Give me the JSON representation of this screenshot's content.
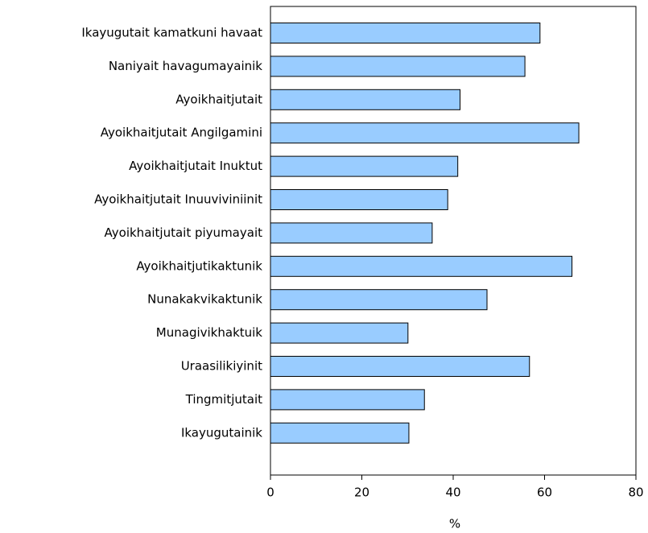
{
  "chart_data": {
    "type": "barh",
    "categories": [
      "Ikayugutait kamatkuni havaat",
      "Naniyait havagumayainik",
      "Ayoikhaitjutait",
      "Ayoikhaitjutait Angilgamini",
      "Ayoikhaitjutait Inuktut",
      "Ayoikhaitjutait Inuuviviniinit",
      "Ayoikhaitjutait piyumayait",
      "Ayoikhaitjutikaktunik",
      "Nunakakvikaktunik",
      "Munagivikhaktuik",
      "Uraasilikiyinit",
      "Tingmitjutait",
      "Ikayugutainik"
    ],
    "values": [
      59,
      55.7,
      41.5,
      67.5,
      41,
      38.8,
      35.4,
      66,
      47.4,
      30.1,
      56.7,
      33.7,
      30.3
    ],
    "color": "#99ccff",
    "xlabel": "%",
    "xlim": [
      0,
      80
    ],
    "xticks": [
      0,
      20,
      40,
      60,
      80
    ]
  }
}
